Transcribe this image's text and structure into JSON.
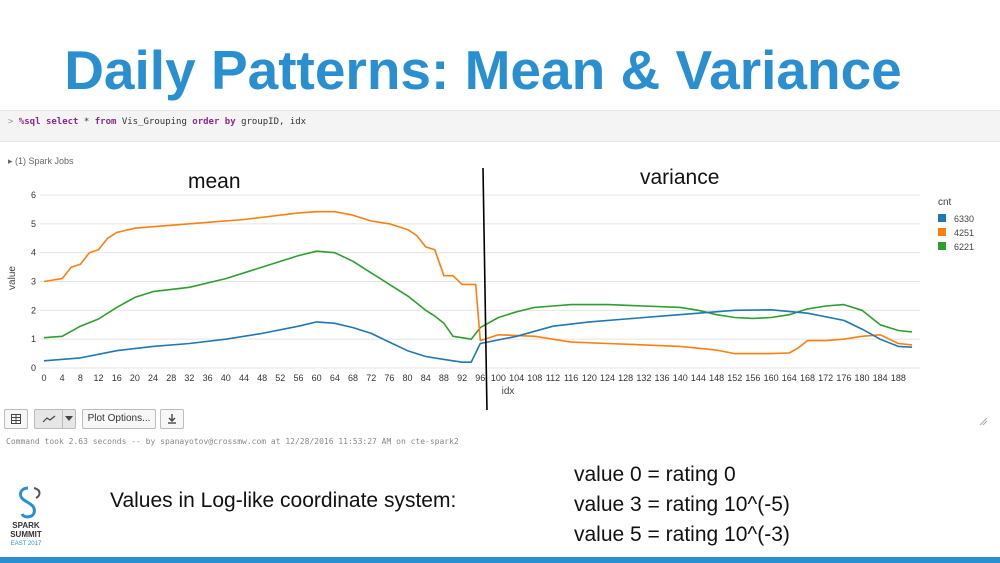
{
  "title": "Daily Patterns: Mean & Variance",
  "notebook": {
    "command": {
      "arrow": ">",
      "magic": "%sql",
      "kw_select": "select",
      "rest1": "* ",
      "kw_from": "from",
      "rest2": "Vis_Grouping",
      "kw_order": "order by",
      "rest3": "groupID, idx"
    },
    "spark_jobs": "▸ (1) Spark Jobs",
    "toolbar": {
      "table_icon": "table-icon",
      "chart_icon": "line-chart-icon",
      "dropdown_icon": "chevron-down-icon",
      "plot_options": "Plot Options...",
      "download_icon": "download-icon"
    },
    "status": "Command took 2.63 seconds -- by spanayotov@crossmw.com at 12/28/2016 11:53:27 AM on cte-spark2"
  },
  "annotations": {
    "mean": "mean",
    "variance": "variance",
    "loglike": "Values in Log-like coordinate system:",
    "rule1": "value 0 = rating 0",
    "rule2": "value 3 = rating 10^(-5)",
    "rule3": "value 5 = rating 10^(-3)"
  },
  "logo": {
    "line1": "SPARK",
    "line2": "SUMMIT",
    "line3": "EAST 2017"
  },
  "colors": {
    "title": "#2a8fd0",
    "series_6330": "#1f77b4",
    "series_4251": "#ff7f0e",
    "series_6221": "#2ca02c"
  },
  "chart_data": {
    "type": "line",
    "xlabel": "idx",
    "ylabel": "value",
    "xlim": [
      0,
      191
    ],
    "ylim": [
      0,
      6
    ],
    "x_ticks": [
      0,
      4,
      8,
      12,
      16,
      20,
      24,
      28,
      32,
      36,
      40,
      44,
      48,
      52,
      56,
      60,
      64,
      68,
      72,
      76,
      80,
      84,
      88,
      92,
      96,
      100,
      104,
      108,
      112,
      116,
      120,
      124,
      128,
      132,
      136,
      140,
      144,
      148,
      152,
      156,
      160,
      164,
      168,
      172,
      176,
      180,
      184,
      188
    ],
    "y_ticks": [
      0,
      1,
      2,
      3,
      4,
      5,
      6
    ],
    "legend_title": "cnt",
    "legend_position": "right",
    "divider_at": 96,
    "series": [
      {
        "name": "6330",
        "points": [
          [
            0,
            0.25
          ],
          [
            8,
            0.35
          ],
          [
            16,
            0.6
          ],
          [
            24,
            0.75
          ],
          [
            32,
            0.85
          ],
          [
            40,
            1.0
          ],
          [
            48,
            1.2
          ],
          [
            56,
            1.45
          ],
          [
            60,
            1.6
          ],
          [
            64,
            1.55
          ],
          [
            68,
            1.4
          ],
          [
            72,
            1.2
          ],
          [
            76,
            0.9
          ],
          [
            80,
            0.6
          ],
          [
            84,
            0.4
          ],
          [
            88,
            0.3
          ],
          [
            92,
            0.2
          ],
          [
            94,
            0.2
          ],
          [
            96,
            0.85
          ],
          [
            104,
            1.1
          ],
          [
            112,
            1.45
          ],
          [
            120,
            1.6
          ],
          [
            128,
            1.7
          ],
          [
            136,
            1.8
          ],
          [
            144,
            1.9
          ],
          [
            152,
            2.0
          ],
          [
            160,
            2.02
          ],
          [
            168,
            1.9
          ],
          [
            176,
            1.65
          ],
          [
            180,
            1.35
          ],
          [
            184,
            1.0
          ],
          [
            188,
            0.75
          ],
          [
            191,
            0.72
          ]
        ]
      },
      {
        "name": "4251",
        "points": [
          [
            0,
            3.0
          ],
          [
            4,
            3.1
          ],
          [
            6,
            3.5
          ],
          [
            8,
            3.6
          ],
          [
            10,
            4.0
          ],
          [
            12,
            4.1
          ],
          [
            14,
            4.5
          ],
          [
            16,
            4.7
          ],
          [
            20,
            4.85
          ],
          [
            32,
            5.0
          ],
          [
            44,
            5.15
          ],
          [
            56,
            5.38
          ],
          [
            60,
            5.42
          ],
          [
            64,
            5.42
          ],
          [
            68,
            5.3
          ],
          [
            72,
            5.1
          ],
          [
            76,
            5.0
          ],
          [
            80,
            4.8
          ],
          [
            82,
            4.6
          ],
          [
            84,
            4.2
          ],
          [
            86,
            4.1
          ],
          [
            88,
            3.2
          ],
          [
            90,
            3.2
          ],
          [
            92,
            2.9
          ],
          [
            95,
            2.9
          ],
          [
            96,
            0.95
          ],
          [
            100,
            1.15
          ],
          [
            108,
            1.1
          ],
          [
            116,
            0.9
          ],
          [
            124,
            0.85
          ],
          [
            132,
            0.8
          ],
          [
            140,
            0.75
          ],
          [
            148,
            0.62
          ],
          [
            152,
            0.5
          ],
          [
            160,
            0.5
          ],
          [
            164,
            0.52
          ],
          [
            166,
            0.7
          ],
          [
            168,
            0.95
          ],
          [
            172,
            0.95
          ],
          [
            176,
            1.0
          ],
          [
            180,
            1.1
          ],
          [
            184,
            1.15
          ],
          [
            188,
            0.85
          ],
          [
            191,
            0.8
          ]
        ]
      },
      {
        "name": "6221",
        "points": [
          [
            0,
            1.05
          ],
          [
            4,
            1.1
          ],
          [
            8,
            1.45
          ],
          [
            12,
            1.7
          ],
          [
            16,
            2.1
          ],
          [
            20,
            2.45
          ],
          [
            24,
            2.65
          ],
          [
            32,
            2.8
          ],
          [
            40,
            3.1
          ],
          [
            48,
            3.5
          ],
          [
            56,
            3.9
          ],
          [
            60,
            4.05
          ],
          [
            64,
            4.0
          ],
          [
            68,
            3.7
          ],
          [
            72,
            3.3
          ],
          [
            76,
            2.9
          ],
          [
            80,
            2.5
          ],
          [
            84,
            2.0
          ],
          [
            86,
            1.8
          ],
          [
            88,
            1.55
          ],
          [
            90,
            1.1
          ],
          [
            92,
            1.05
          ],
          [
            94,
            1.0
          ],
          [
            96,
            1.4
          ],
          [
            100,
            1.75
          ],
          [
            104,
            1.95
          ],
          [
            108,
            2.1
          ],
          [
            112,
            2.15
          ],
          [
            116,
            2.2
          ],
          [
            124,
            2.2
          ],
          [
            132,
            2.15
          ],
          [
            140,
            2.1
          ],
          [
            144,
            2.0
          ],
          [
            148,
            1.85
          ],
          [
            152,
            1.75
          ],
          [
            156,
            1.72
          ],
          [
            160,
            1.75
          ],
          [
            164,
            1.85
          ],
          [
            168,
            2.05
          ],
          [
            172,
            2.15
          ],
          [
            176,
            2.2
          ],
          [
            180,
            2.0
          ],
          [
            184,
            1.5
          ],
          [
            188,
            1.3
          ],
          [
            191,
            1.25
          ]
        ]
      }
    ]
  }
}
